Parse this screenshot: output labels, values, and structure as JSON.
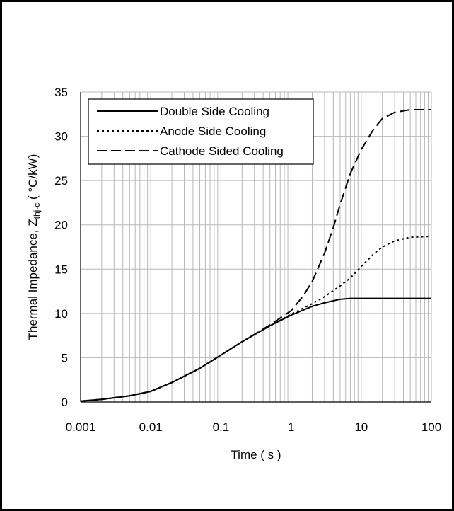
{
  "chart_data": {
    "type": "line",
    "title": "",
    "xlabel": "Time ( s )",
    "ylabel": {
      "main": "Thermal Impedance, Z",
      "subscript": "thj-c",
      "unit": " ( °C/kW)"
    },
    "x_scale": "log",
    "xlim": [
      0.001,
      100
    ],
    "ylim": [
      0,
      35
    ],
    "x_ticks": [
      "0.001",
      "0.01",
      "0.1",
      "1",
      "10",
      "100"
    ],
    "y_ticks": [
      "0",
      "5",
      "10",
      "15",
      "20",
      "25",
      "30",
      "35"
    ],
    "grid": true,
    "legend_position": "top-left",
    "series": [
      {
        "name": "Double Side Cooling",
        "line_style": "solid",
        "x": [
          0.001,
          0.002,
          0.005,
          0.01,
          0.02,
          0.05,
          0.1,
          0.2,
          0.5,
          1,
          2,
          3,
          5,
          7,
          10,
          20,
          50,
          100
        ],
        "y": [
          0.1,
          0.3,
          0.7,
          1.2,
          2.2,
          3.8,
          5.3,
          6.8,
          8.6,
          9.8,
          10.8,
          11.2,
          11.6,
          11.7,
          11.7,
          11.7,
          11.7,
          11.7
        ]
      },
      {
        "name": "Anode Side Cooling",
        "line_style": "dotted",
        "x": [
          0.001,
          0.002,
          0.005,
          0.01,
          0.02,
          0.05,
          0.1,
          0.2,
          0.5,
          1,
          2,
          3,
          5,
          7,
          10,
          15,
          20,
          30,
          50,
          100
        ],
        "y": [
          0.1,
          0.3,
          0.7,
          1.2,
          2.2,
          3.8,
          5.3,
          6.8,
          8.6,
          9.9,
          11.1,
          11.9,
          13.1,
          14.0,
          15.3,
          16.7,
          17.5,
          18.2,
          18.6,
          18.7
        ]
      },
      {
        "name": "Cathode Sided Cooling",
        "line_style": "dashed",
        "x": [
          0.001,
          0.002,
          0.005,
          0.01,
          0.02,
          0.05,
          0.1,
          0.2,
          0.5,
          1,
          1.5,
          2,
          3,
          4,
          5,
          7,
          10,
          15,
          20,
          30,
          50,
          100
        ],
        "y": [
          0.1,
          0.3,
          0.7,
          1.2,
          2.2,
          3.8,
          5.3,
          6.8,
          8.7,
          10.3,
          12.0,
          13.6,
          16.8,
          19.7,
          22.3,
          25.8,
          28.5,
          30.8,
          32.0,
          32.7,
          33.0,
          33.0
        ]
      }
    ]
  }
}
